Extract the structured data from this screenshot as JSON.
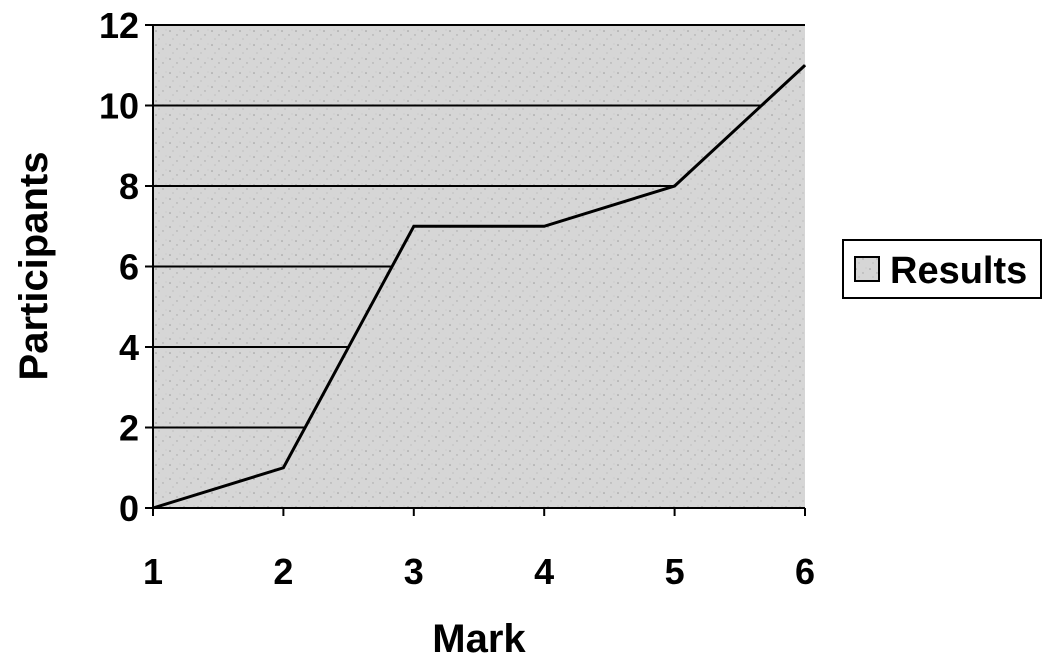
{
  "chart_data": {
    "type": "area",
    "title": "",
    "xlabel": "Mark",
    "ylabel": "Participants",
    "x": [
      1,
      2,
      3,
      4,
      5,
      6
    ],
    "xlim": [
      1,
      6
    ],
    "ylim": [
      0,
      12
    ],
    "yticks": [
      0,
      2,
      4,
      6,
      8,
      10,
      12
    ],
    "xticks": [
      1,
      2,
      3,
      4,
      5,
      6
    ],
    "grid": "horizontal",
    "legend_position": "right",
    "series": [
      {
        "name": "Results",
        "values": [
          0,
          1,
          7,
          7,
          8,
          11
        ]
      }
    ],
    "colors": {
      "plot_background": "#d4d4d4",
      "area_fill": "#d4d4d4",
      "line": "#000000",
      "grid": "#000000"
    }
  }
}
